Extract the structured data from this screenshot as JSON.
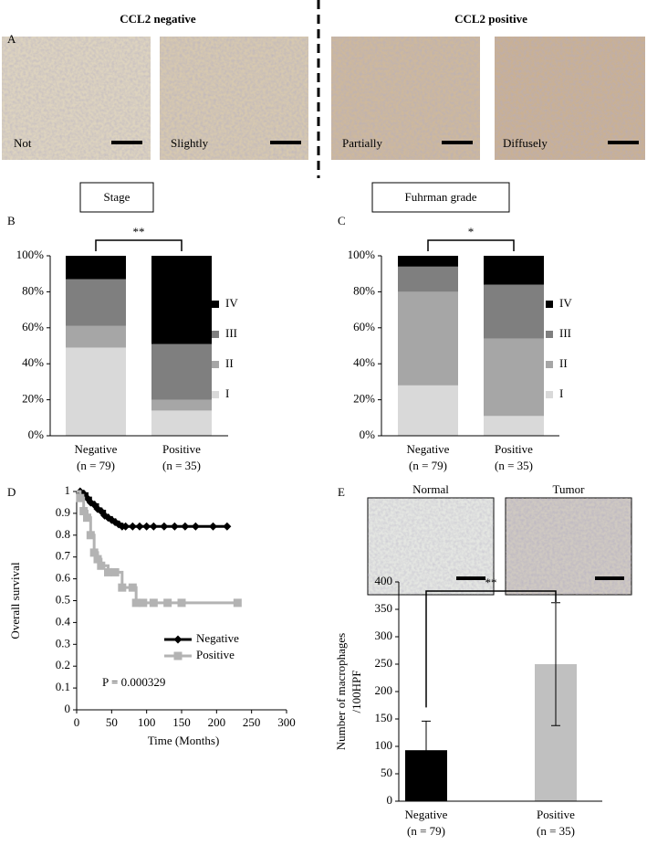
{
  "figure": {
    "panels": [
      "A",
      "B",
      "C",
      "D",
      "E"
    ],
    "panel_a": {
      "headers": [
        "CCL2 negative",
        "CCL2 positive"
      ],
      "captions": [
        "Not",
        "Slightly",
        "Partially",
        "Diffusely"
      ]
    },
    "panel_e_images": [
      "Normal",
      "Tumor"
    ]
  },
  "chart_data": [
    {
      "type": "stacked_bar",
      "title": "Stage",
      "categories": [
        "Negative",
        "Positive"
      ],
      "category_sublabels": [
        "(n = 79)",
        "(n = 35)"
      ],
      "series": [
        {
          "name": "I",
          "color": "#d9d9d9",
          "values": [
            49,
            14
          ]
        },
        {
          "name": "II",
          "color": "#a6a6a6",
          "values": [
            12,
            6
          ]
        },
        {
          "name": "III",
          "color": "#7f7f7f",
          "values": [
            26,
            31
          ]
        },
        {
          "name": "IV",
          "color": "#000000",
          "values": [
            13,
            49
          ]
        }
      ],
      "ylim": [
        0,
        100
      ],
      "yticks": [
        {
          "value": 0,
          "label": "0%"
        },
        {
          "value": 20,
          "label": "20%"
        },
        {
          "value": 40,
          "label": "40%"
        },
        {
          "value": 60,
          "label": "60%"
        },
        {
          "value": 80,
          "label": "80%"
        },
        {
          "value": 100,
          "label": "100%"
        }
      ],
      "annotation": "**",
      "legend": "right"
    },
    {
      "type": "stacked_bar",
      "title": "Fuhrman grade",
      "categories": [
        "Negative",
        "Positive"
      ],
      "category_sublabels": [
        "(n = 79)",
        "(n = 35)"
      ],
      "series": [
        {
          "name": "I",
          "color": "#d9d9d9",
          "values": [
            28,
            11
          ]
        },
        {
          "name": "II",
          "color": "#a6a6a6",
          "values": [
            52,
            43
          ]
        },
        {
          "name": "III",
          "color": "#7f7f7f",
          "values": [
            14,
            30
          ]
        },
        {
          "name": "IV",
          "color": "#000000",
          "values": [
            6,
            16
          ]
        }
      ],
      "ylim": [
        0,
        100
      ],
      "yticks": [
        {
          "value": 0,
          "label": "0%"
        },
        {
          "value": 20,
          "label": "20%"
        },
        {
          "value": 40,
          "label": "40%"
        },
        {
          "value": 60,
          "label": "60%"
        },
        {
          "value": 80,
          "label": "80%"
        },
        {
          "value": 100,
          "label": "100%"
        }
      ],
      "annotation": "*",
      "legend": "right"
    },
    {
      "type": "survival",
      "xlabel": "Time (Months)",
      "ylabel": "Overall survival",
      "series": [
        {
          "name": "Negative",
          "color": "#000000",
          "marker": "diamond",
          "x": [
            0,
            5,
            10,
            15,
            20,
            25,
            30,
            35,
            40,
            45,
            50,
            55,
            60,
            65,
            70,
            80,
            90,
            100,
            110,
            125,
            140,
            155,
            170,
            195,
            215
          ],
          "values": [
            1,
            1,
            0.99,
            0.97,
            0.95,
            0.94,
            0.92,
            0.91,
            0.89,
            0.88,
            0.87,
            0.86,
            0.85,
            0.84,
            0.84,
            0.84,
            0.84,
            0.84,
            0.84,
            0.84,
            0.84,
            0.84,
            0.84,
            0.84,
            0.84
          ]
        },
        {
          "name": "Positive",
          "color": "#b3b3b3",
          "marker": "square",
          "x": [
            0,
            5,
            10,
            15,
            20,
            25,
            30,
            35,
            45,
            55,
            65,
            80,
            85,
            95,
            110,
            130,
            150,
            230
          ],
          "values": [
            1,
            0.97,
            0.91,
            0.88,
            0.8,
            0.72,
            0.69,
            0.66,
            0.63,
            0.63,
            0.56,
            0.56,
            0.49,
            0.49,
            0.49,
            0.49,
            0.49,
            0.49
          ]
        }
      ],
      "xlim": [
        0,
        300
      ],
      "xticks": [
        0,
        50,
        100,
        150,
        200,
        250,
        300
      ],
      "ylim": [
        0,
        1
      ],
      "yticks": [
        0,
        0.1,
        0.2,
        0.3,
        0.4,
        0.5,
        0.6,
        0.7,
        0.8,
        0.9,
        1
      ],
      "annotation": "P = 0.000329",
      "legend": "center right"
    },
    {
      "type": "bar_error",
      "ylabel": [
        "Number of macrophages",
        "/100HPF"
      ],
      "categories": [
        "Negative",
        "Positive"
      ],
      "category_sublabels": [
        "(n = 79)",
        "(n = 35)"
      ],
      "values": [
        93,
        250
      ],
      "errors": [
        53,
        112
      ],
      "colors": [
        "#000000",
        "#c0c0c0"
      ],
      "ylim": [
        0,
        400
      ],
      "yticks": [
        0,
        50,
        100,
        150,
        200,
        250,
        300,
        350,
        400
      ],
      "annotation": "**"
    }
  ]
}
